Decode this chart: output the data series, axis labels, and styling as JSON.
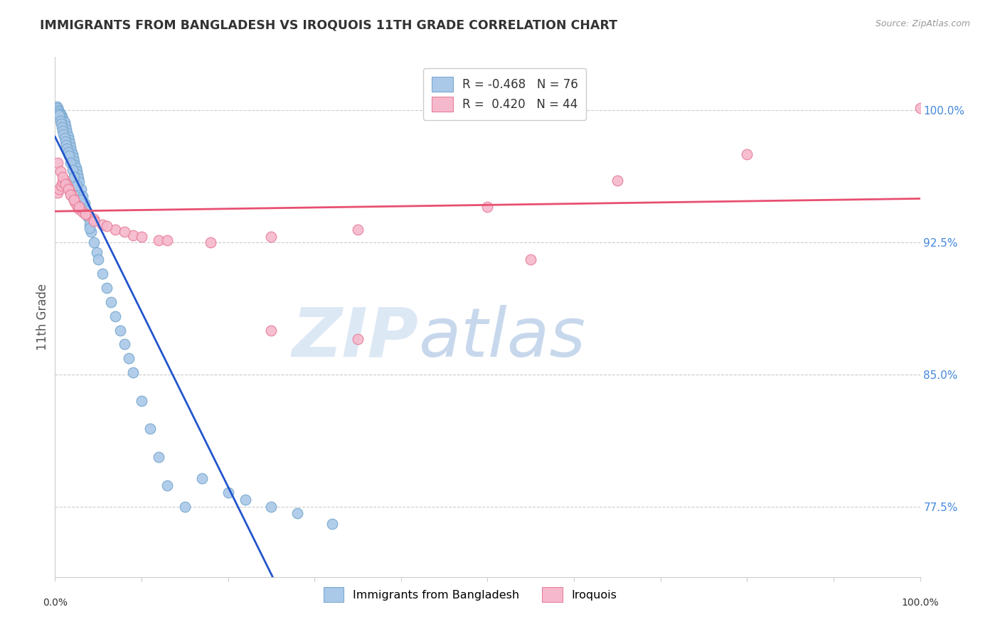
{
  "title": "IMMIGRANTS FROM BANGLADESH VS IROQUOIS 11TH GRADE CORRELATION CHART",
  "source": "Source: ZipAtlas.com",
  "ylabel": "11th Grade",
  "right_yticks": [
    0.775,
    0.85,
    0.925,
    1.0
  ],
  "right_yticklabels": [
    "77.5%",
    "85.0%",
    "92.5%",
    "100.0%"
  ],
  "xmin": 0.0,
  "xmax": 1.0,
  "ymin": 0.735,
  "ymax": 1.03,
  "blue_R": -0.468,
  "blue_N": 76,
  "pink_R": 0.42,
  "pink_N": 44,
  "blue_color": "#aac8e8",
  "blue_edge": "#7aaad0",
  "pink_color": "#f5b8cc",
  "pink_edge": "#e8809a",
  "blue_line_color": "#2255cc",
  "blue_dash_color": "#aabbd8",
  "pink_line_color": "#e85070",
  "grid_color": "#cccccc",
  "title_color": "#333333",
  "source_color": "#999999",
  "right_tick_color": "#4488dd",
  "legend_label_blue": "Immigrants from Bangladesh",
  "legend_label_pink": "Iroquois",
  "blue_scatter_x": [
    0.002,
    0.003,
    0.004,
    0.005,
    0.006,
    0.007,
    0.008,
    0.009,
    0.01,
    0.011,
    0.012,
    0.013,
    0.014,
    0.015,
    0.016,
    0.017,
    0.018,
    0.019,
    0.02,
    0.021,
    0.022,
    0.023,
    0.024,
    0.025,
    0.026,
    0.027,
    0.028,
    0.03,
    0.032,
    0.034,
    0.036,
    0.038,
    0.04,
    0.042,
    0.045,
    0.048,
    0.05,
    0.055,
    0.06,
    0.065,
    0.07,
    0.075,
    0.08,
    0.085,
    0.09,
    0.1,
    0.11,
    0.12,
    0.13,
    0.15,
    0.004,
    0.005,
    0.006,
    0.007,
    0.008,
    0.009,
    0.01,
    0.011,
    0.012,
    0.013,
    0.014,
    0.015,
    0.016,
    0.018,
    0.02,
    0.022,
    0.025,
    0.03,
    0.035,
    0.04,
    0.17,
    0.2,
    0.22,
    0.25,
    0.28,
    0.32
  ],
  "blue_scatter_y": [
    1.002,
    1.001,
    1.0,
    0.999,
    0.998,
    0.997,
    0.996,
    0.995,
    0.994,
    0.993,
    0.991,
    0.989,
    0.987,
    0.985,
    0.983,
    0.981,
    0.979,
    0.977,
    0.975,
    0.973,
    0.971,
    0.969,
    0.967,
    0.965,
    0.963,
    0.961,
    0.959,
    0.955,
    0.951,
    0.947,
    0.943,
    0.939,
    0.935,
    0.931,
    0.925,
    0.919,
    0.915,
    0.907,
    0.899,
    0.891,
    0.883,
    0.875,
    0.867,
    0.859,
    0.851,
    0.835,
    0.819,
    0.803,
    0.787,
    0.775,
    0.998,
    0.997,
    0.994,
    0.992,
    0.99,
    0.988,
    0.986,
    0.984,
    0.982,
    0.98,
    0.978,
    0.976,
    0.974,
    0.97,
    0.966,
    0.962,
    0.957,
    0.949,
    0.941,
    0.933,
    0.791,
    0.783,
    0.779,
    0.775,
    0.771,
    0.765
  ],
  "pink_scatter_x": [
    0.003,
    0.005,
    0.007,
    0.009,
    0.011,
    0.013,
    0.015,
    0.017,
    0.019,
    0.021,
    0.023,
    0.025,
    0.028,
    0.032,
    0.038,
    0.045,
    0.055,
    0.07,
    0.09,
    0.12,
    0.003,
    0.006,
    0.009,
    0.012,
    0.015,
    0.018,
    0.022,
    0.028,
    0.035,
    0.045,
    0.06,
    0.08,
    0.1,
    0.13,
    0.18,
    0.25,
    0.35,
    0.5,
    0.65,
    0.8,
    0.25,
    0.35,
    0.55,
    1.0
  ],
  "pink_scatter_y": [
    0.953,
    0.955,
    0.957,
    0.959,
    0.96,
    0.958,
    0.956,
    0.954,
    0.952,
    0.95,
    0.948,
    0.946,
    0.944,
    0.942,
    0.94,
    0.938,
    0.935,
    0.932,
    0.929,
    0.926,
    0.97,
    0.965,
    0.962,
    0.958,
    0.955,
    0.952,
    0.949,
    0.945,
    0.941,
    0.937,
    0.934,
    0.931,
    0.928,
    0.926,
    0.925,
    0.928,
    0.932,
    0.945,
    0.96,
    0.975,
    0.875,
    0.87,
    0.915,
    1.001
  ]
}
